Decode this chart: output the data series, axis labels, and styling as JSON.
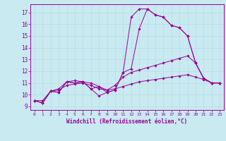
{
  "background_color": "#c8eaf0",
  "line_color": "#990099",
  "grid_color": "#b8dde8",
  "xlabel": "Windchill (Refroidissement éolien,°C)",
  "ylabel_ticks": [
    9,
    10,
    11,
    12,
    13,
    14,
    15,
    16,
    17
  ],
  "xlim": [
    -0.5,
    23.5
  ],
  "ylim": [
    8.7,
    17.7
  ],
  "xticks": [
    0,
    1,
    2,
    3,
    4,
    5,
    6,
    7,
    8,
    9,
    10,
    11,
    12,
    13,
    14,
    15,
    16,
    17,
    18,
    19,
    20,
    21,
    22,
    23
  ],
  "series": [
    {
      "x": [
        0,
        1,
        2,
        3,
        4,
        5,
        6,
        7,
        8,
        9,
        10,
        11,
        12,
        13,
        14,
        15,
        16,
        17,
        18,
        19,
        20,
        21,
        22,
        23
      ],
      "y": [
        9.5,
        9.3,
        10.3,
        10.2,
        11.1,
        11.0,
        11.1,
        10.5,
        10.7,
        10.2,
        10.4,
        11.9,
        16.6,
        17.3,
        17.3,
        16.8,
        16.6,
        15.9,
        15.7,
        15.0,
        12.7,
        11.4,
        11.0,
        11.0
      ]
    },
    {
      "x": [
        0,
        1,
        2,
        3,
        4,
        5,
        6,
        7,
        8,
        9,
        10,
        11,
        12,
        13,
        14,
        15,
        16,
        17,
        18,
        19,
        20,
        21,
        22,
        23
      ],
      "y": [
        9.5,
        9.3,
        10.3,
        10.2,
        11.1,
        11.0,
        11.1,
        10.5,
        9.9,
        10.2,
        10.4,
        11.9,
        12.2,
        15.6,
        17.3,
        16.8,
        16.6,
        15.9,
        15.7,
        15.0,
        12.7,
        11.4,
        11.0,
        11.0
      ]
    },
    {
      "x": [
        0,
        1,
        2,
        3,
        4,
        5,
        6,
        7,
        8,
        9,
        10,
        11,
        12,
        13,
        14,
        15,
        16,
        17,
        18,
        19,
        20,
        21,
        22,
        23
      ],
      "y": [
        9.5,
        9.3,
        10.3,
        10.5,
        11.1,
        11.2,
        11.1,
        11.0,
        10.7,
        10.4,
        10.8,
        11.5,
        11.9,
        12.1,
        12.3,
        12.5,
        12.7,
        12.9,
        13.1,
        13.3,
        12.7,
        11.4,
        11.0,
        11.0
      ]
    },
    {
      "x": [
        0,
        1,
        2,
        3,
        4,
        5,
        6,
        7,
        8,
        9,
        10,
        11,
        12,
        13,
        14,
        15,
        16,
        17,
        18,
        19,
        20,
        21,
        22,
        23
      ],
      "y": [
        9.5,
        9.5,
        10.3,
        10.4,
        10.8,
        10.9,
        11.0,
        10.8,
        10.5,
        10.4,
        10.5,
        10.7,
        10.9,
        11.1,
        11.2,
        11.3,
        11.4,
        11.5,
        11.6,
        11.7,
        11.5,
        11.3,
        11.0,
        11.0
      ]
    }
  ]
}
